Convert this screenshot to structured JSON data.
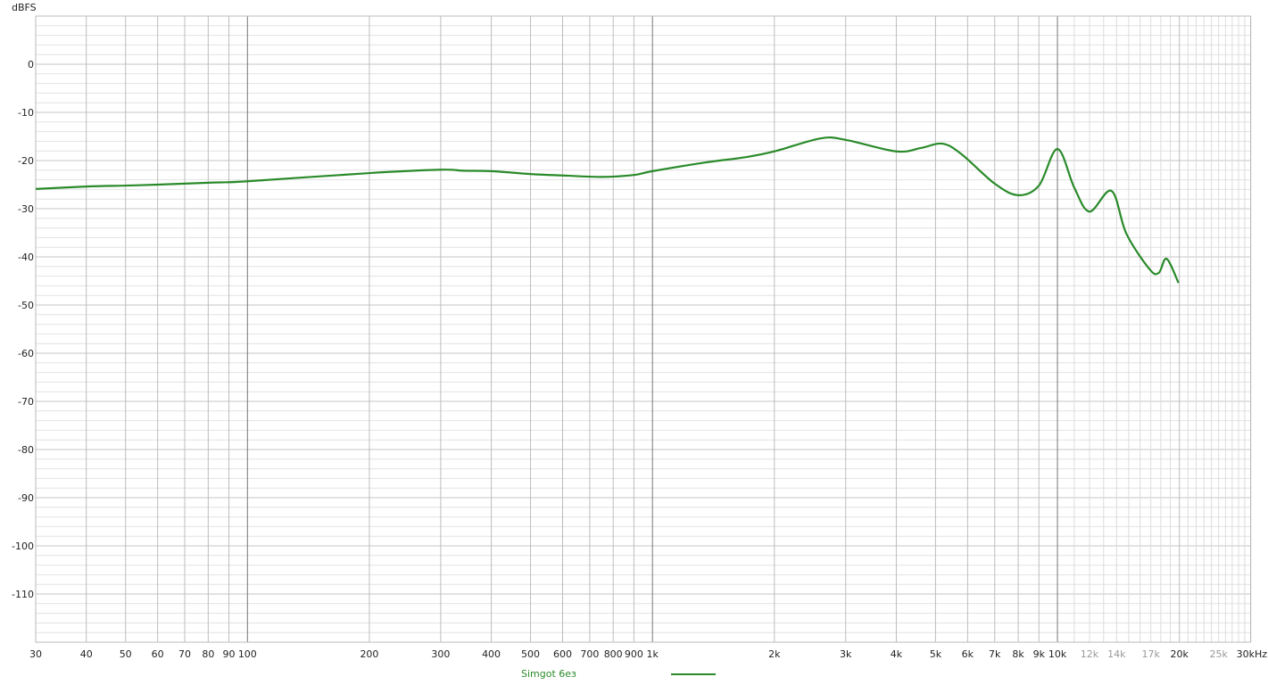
{
  "chart_data": {
    "type": "line",
    "ylabel": "dBFS",
    "xscale": "log",
    "xlim": [
      30,
      30000
    ],
    "ylim": [
      -120,
      10
    ],
    "grid": true,
    "y_ticks": [
      0,
      -10,
      -20,
      -30,
      -40,
      -50,
      -60,
      -70,
      -80,
      -90,
      -100,
      -110
    ],
    "x_ticks": [
      {
        "v": 30,
        "label": "30"
      },
      {
        "v": 40,
        "label": "40"
      },
      {
        "v": 50,
        "label": "50"
      },
      {
        "v": 60,
        "label": "60"
      },
      {
        "v": 70,
        "label": "70"
      },
      {
        "v": 80,
        "label": "80"
      },
      {
        "v": 90,
        "label": "90"
      },
      {
        "v": 100,
        "label": "100"
      },
      {
        "v": 200,
        "label": "200"
      },
      {
        "v": 300,
        "label": "300"
      },
      {
        "v": 400,
        "label": "400"
      },
      {
        "v": 500,
        "label": "500"
      },
      {
        "v": 600,
        "label": "600"
      },
      {
        "v": 700,
        "label": "700"
      },
      {
        "v": 800,
        "label": "800"
      },
      {
        "v": 900,
        "label": "900"
      },
      {
        "v": 1000,
        "label": "1k"
      },
      {
        "v": 2000,
        "label": "2k"
      },
      {
        "v": 3000,
        "label": "3k"
      },
      {
        "v": 4000,
        "label": "4k"
      },
      {
        "v": 5000,
        "label": "5k"
      },
      {
        "v": 6000,
        "label": "6k"
      },
      {
        "v": 7000,
        "label": "7k"
      },
      {
        "v": 8000,
        "label": "8k"
      },
      {
        "v": 9000,
        "label": "9k"
      },
      {
        "v": 10000,
        "label": "10k"
      },
      {
        "v": 12000,
        "label": "12k",
        "minor": true
      },
      {
        "v": 14000,
        "label": "14k",
        "minor": true
      },
      {
        "v": 17000,
        "label": "17k",
        "minor": true
      },
      {
        "v": 20000,
        "label": "20k"
      },
      {
        "v": 25000,
        "label": "25k",
        "minor": true
      },
      {
        "v": 30000,
        "label": "30kHz"
      }
    ],
    "legend_placement": "bottom",
    "series": [
      {
        "name": "Simgot 6ез",
        "color": "#2a8a2a",
        "x": [
          30,
          40,
          50,
          60,
          80,
          100,
          200,
          300,
          340,
          400,
          500,
          600,
          750,
          900,
          1000,
          1350,
          1700,
          2000,
          2600,
          3000,
          4000,
          4600,
          5200,
          5800,
          7000,
          8000,
          9000,
          10000,
          11000,
          12000,
          13600,
          14800,
          16900,
          17800,
          18600,
          19900
        ],
        "y": [
          -25.9,
          -25.4,
          -25.2,
          -25.0,
          -24.6,
          -24.3,
          -22.6,
          -21.9,
          -22.1,
          -22.2,
          -22.8,
          -23.1,
          -23.4,
          -23.0,
          -22.2,
          -20.4,
          -19.3,
          -18.1,
          -15.4,
          -15.7,
          -18.1,
          -17.4,
          -16.5,
          -18.7,
          -24.8,
          -27.2,
          -25.2,
          -17.6,
          -25.6,
          -30.6,
          -26.3,
          -35.2,
          -42.6,
          -43.3,
          -40.4,
          -45.4
        ]
      }
    ]
  }
}
